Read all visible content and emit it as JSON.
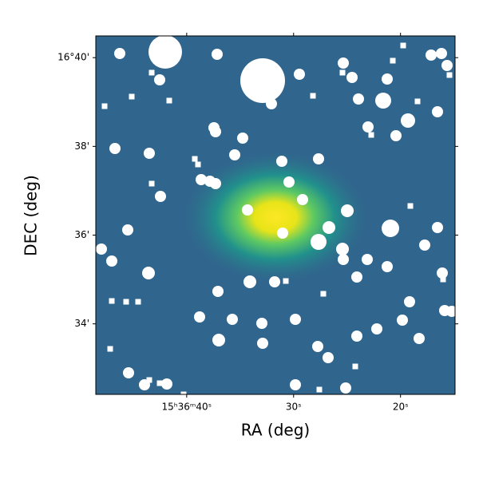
{
  "chart_data": {
    "type": "image",
    "xlabel": "RA (deg)",
    "ylabel": "DEC (deg)",
    "xlim": [
      48.5,
      14.9
    ],
    "xticks": [
      {
        "value": 40,
        "label": "15ʰ36ᵐ40ˢ"
      },
      {
        "value": 30,
        "label": "30ˢ"
      },
      {
        "value": 20,
        "label": "20ˢ"
      }
    ],
    "ylim": [
      32.41,
      40.49
    ],
    "yticks": [
      {
        "value": 34,
        "label": "34'"
      },
      {
        "value": 36,
        "label": "36'"
      },
      {
        "value": 38,
        "label": "38'"
      },
      {
        "value": 40,
        "label": "16°40'"
      }
    ]
  }
}
